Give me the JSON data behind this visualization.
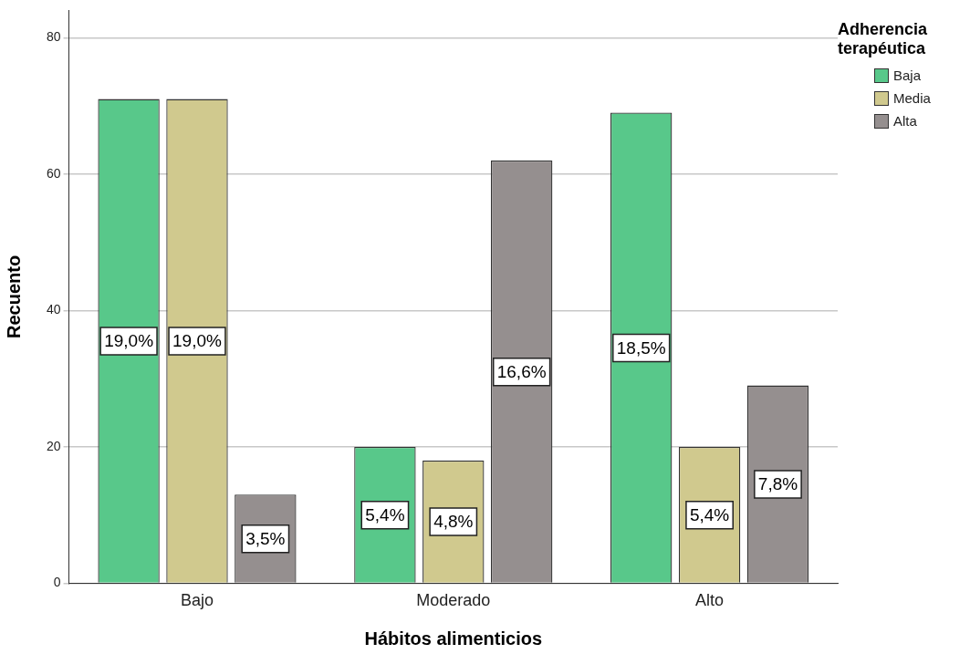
{
  "chart_data": {
    "type": "bar",
    "xlabel": "Hábitos alimenticios",
    "ylabel": "Recuento",
    "legend_title": "Adherencia terapéutica",
    "categories": [
      "Bajo",
      "Moderado",
      "Alto"
    ],
    "series": [
      {
        "name": "Baja",
        "color": "#58c88a",
        "values": [
          71,
          20,
          69
        ]
      },
      {
        "name": "Media",
        "color": "#d0c98e",
        "values": [
          71,
          18,
          20
        ]
      },
      {
        "name": "Alta",
        "color": "#958f8f",
        "values": [
          13,
          62,
          29
        ]
      }
    ],
    "annotations": [
      "19,0%",
      "19,0%",
      "3,5%",
      "5,4%",
      "4,8%",
      "16,6%",
      "18,5%",
      "5,4%",
      "7,8%"
    ],
    "ylim": [
      0,
      84
    ],
    "yticks": [
      0,
      20,
      40,
      60,
      80
    ],
    "grid": "y",
    "legend": "top right"
  }
}
